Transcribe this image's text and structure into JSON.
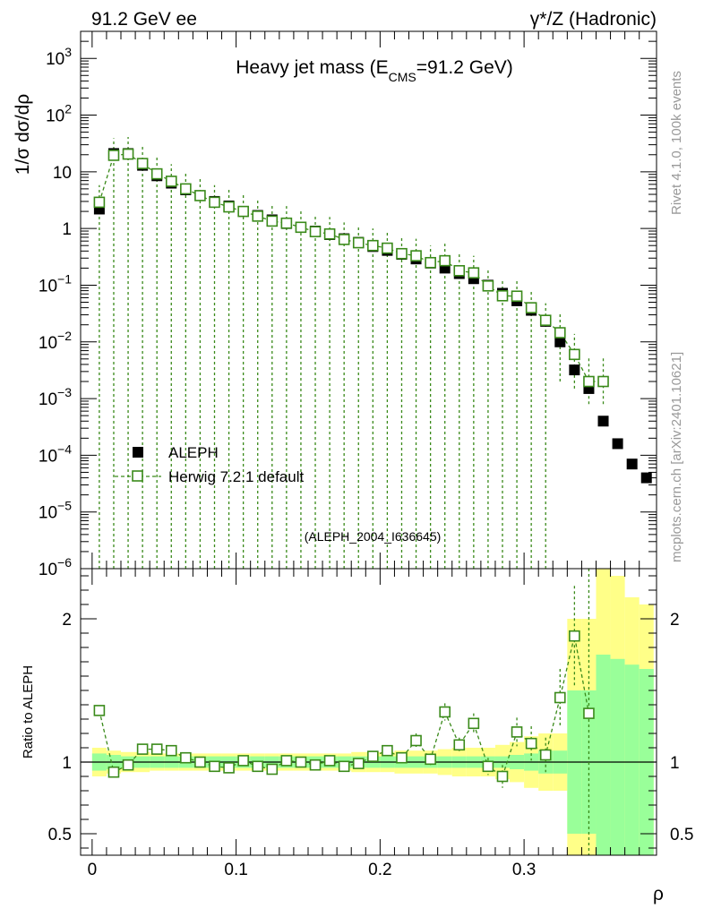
{
  "header": {
    "left": "91.2 GeV ee",
    "right": "γ*/Z (Hadronic)"
  },
  "side": {
    "rivet": "Rivet 4.1.0,  100k events",
    "mcplots": "mcplots.cern.ch [arXiv:2401.10621]"
  },
  "watermark": "(ALEPH_2004_I636645)",
  "colors": {
    "mc": "#3a8a1a",
    "band_outer": "#ffff88",
    "band_inner": "#99ff99",
    "data": "#000000"
  },
  "chart_data": [
    {
      "type": "scatter",
      "title": "Heavy jet mass (E",
      "title_sub": "CMS",
      "title_tail": "=91.2 GeV)",
      "ylabel": "1/σ  dσ/dρ",
      "yscale": "log",
      "ylim": [
        1e-06,
        3000
      ],
      "xlim": [
        -0.008,
        0.392
      ],
      "yticks": [
        {
          "v": 1e-06,
          "b": "10",
          "e": "−6"
        },
        {
          "v": 1e-05,
          "b": "10",
          "e": "−5"
        },
        {
          "v": 0.0001,
          "b": "10",
          "e": "−4"
        },
        {
          "v": 0.001,
          "b": "10",
          "e": "−3"
        },
        {
          "v": 0.01,
          "b": "10",
          "e": "−2"
        },
        {
          "v": 0.1,
          "b": "10",
          "e": "−1"
        },
        {
          "v": 1,
          "b": "1",
          "e": ""
        },
        {
          "v": 10,
          "b": "10",
          "e": ""
        },
        {
          "v": 100,
          "b": "10",
          "e": "2"
        },
        {
          "v": 1000,
          "b": "10",
          "e": "3"
        }
      ],
      "legend": [
        "ALEPH",
        "Herwig 7.2.1 default"
      ],
      "x": [
        0.005,
        0.015,
        0.025,
        0.035,
        0.045,
        0.055,
        0.065,
        0.075,
        0.085,
        0.095,
        0.105,
        0.115,
        0.125,
        0.135,
        0.145,
        0.155,
        0.165,
        0.175,
        0.185,
        0.195,
        0.205,
        0.215,
        0.225,
        0.235,
        0.245,
        0.255,
        0.265,
        0.275,
        0.285,
        0.295,
        0.305,
        0.315,
        0.325,
        0.335,
        0.345,
        0.355,
        0.365,
        0.375,
        0.385
      ],
      "series": [
        {
          "name": "ALEPH",
          "values": [
            2.2,
            21,
            21,
            13,
            8.5,
            6.3,
            4.8,
            3.8,
            3.0,
            2.5,
            2.0,
            1.7,
            1.42,
            1.22,
            1.05,
            0.9,
            0.78,
            0.66,
            0.57,
            0.48,
            0.41,
            0.35,
            0.29,
            0.245,
            0.2,
            0.16,
            0.13,
            0.1,
            0.072,
            0.053,
            0.036,
            0.023,
            0.01,
            0.0032,
            0.0015,
            0.0004,
            0.00016,
            7e-05,
            4e-05
          ]
        },
        {
          "name": "Herwig 7.2.1 default",
          "values": [
            2.9,
            19.5,
            20.5,
            14,
            9.2,
            6.8,
            5.0,
            3.8,
            2.9,
            2.4,
            2.0,
            1.65,
            1.35,
            1.24,
            1.05,
            0.88,
            0.8,
            0.64,
            0.56,
            0.5,
            0.45,
            0.36,
            0.33,
            0.25,
            0.27,
            0.18,
            0.165,
            0.097,
            0.065,
            0.064,
            0.04,
            0.024,
            0.0145,
            0.006,
            0.002,
            0.002
          ],
          "err_low": [
            2.9,
            19.5,
            20.5,
            14,
            9.2,
            6.8,
            5.0,
            3.8,
            2.9,
            2.4,
            2.0,
            1.65,
            1.35,
            1.24,
            1.05,
            0.88,
            0.8,
            0.64,
            0.56,
            0.5,
            0.45,
            0.36,
            0.33,
            0.25,
            0.27,
            0.18,
            0.165,
            0.097,
            0.065,
            0.064,
            0.04,
            0.024,
            0.0125,
            0.0045,
            0.0012,
            0.0012
          ],
          "err_high": [
            2.9,
            19.5,
            20.5,
            14,
            9.2,
            6.8,
            5.0,
            3.8,
            2.9,
            2.4,
            2.0,
            1.65,
            1.35,
            1.24,
            1.05,
            0.88,
            0.8,
            0.64,
            0.56,
            0.5,
            0.45,
            0.36,
            0.33,
            0.25,
            0.27,
            0.18,
            0.165,
            0.097,
            0.065,
            0.064,
            0.04,
            0.024,
            0.017,
            0.0078,
            0.0033,
            0.0033
          ]
        }
      ]
    },
    {
      "type": "line",
      "ylabel": "Ratio to ALEPH",
      "xlabel": "ρ",
      "ylim": [
        0.35,
        2.35
      ],
      "xlim": [
        -0.008,
        0.392
      ],
      "xticks": [
        {
          "v": 0,
          "label": "0"
        },
        {
          "v": 0.1,
          "label": "0.1"
        },
        {
          "v": 0.2,
          "label": "0.2"
        },
        {
          "v": 0.3,
          "label": "0.3"
        }
      ],
      "yticks": [
        {
          "v": 0.5,
          "label": "0.5"
        },
        {
          "v": 1,
          "label": "1"
        },
        {
          "v": 2,
          "label": "2"
        }
      ],
      "bin_edges": [
        0.0,
        0.01,
        0.02,
        0.03,
        0.04,
        0.05,
        0.06,
        0.07,
        0.08,
        0.09,
        0.1,
        0.11,
        0.12,
        0.13,
        0.14,
        0.15,
        0.16,
        0.17,
        0.18,
        0.19,
        0.2,
        0.21,
        0.22,
        0.23,
        0.24,
        0.25,
        0.26,
        0.27,
        0.28,
        0.29,
        0.3,
        0.31,
        0.32,
        0.33,
        0.34,
        0.35,
        0.36,
        0.37,
        0.38,
        0.39
      ],
      "band_outer": [
        0.1,
        0.08,
        0.07,
        0.07,
        0.06,
        0.06,
        0.06,
        0.06,
        0.06,
        0.06,
        0.06,
        0.06,
        0.06,
        0.06,
        0.06,
        0.06,
        0.06,
        0.06,
        0.07,
        0.07,
        0.07,
        0.08,
        0.08,
        0.08,
        0.09,
        0.1,
        0.1,
        0.1,
        0.12,
        0.14,
        0.18,
        0.2,
        0.2,
        1.0,
        1.0,
        1.4,
        1.3,
        1.15,
        1.1
      ],
      "band_inner": [
        0.06,
        0.05,
        0.04,
        0.04,
        0.04,
        0.04,
        0.04,
        0.04,
        0.04,
        0.04,
        0.04,
        0.04,
        0.04,
        0.04,
        0.04,
        0.04,
        0.04,
        0.04,
        0.04,
        0.04,
        0.04,
        0.04,
        0.04,
        0.04,
        0.04,
        0.04,
        0.04,
        0.04,
        0.04,
        0.05,
        0.06,
        0.08,
        0.08,
        0.5,
        0.5,
        0.75,
        0.72,
        0.68,
        0.65
      ],
      "series": [
        {
          "name": "Herwig 7.2.1 default",
          "x": [
            0.005,
            0.015,
            0.025,
            0.035,
            0.045,
            0.055,
            0.065,
            0.075,
            0.085,
            0.095,
            0.105,
            0.115,
            0.125,
            0.135,
            0.145,
            0.155,
            0.165,
            0.175,
            0.185,
            0.195,
            0.205,
            0.215,
            0.225,
            0.235,
            0.245,
            0.255,
            0.265,
            0.275,
            0.285,
            0.295,
            0.305,
            0.315,
            0.325,
            0.335,
            0.345
          ],
          "values": [
            1.36,
            0.93,
            0.98,
            1.09,
            1.09,
            1.08,
            1.03,
            1.0,
            0.97,
            0.96,
            1.01,
            0.97,
            0.95,
            1.01,
            1.0,
            0.98,
            1.01,
            0.97,
            0.99,
            1.04,
            1.08,
            1.03,
            1.15,
            1.02,
            1.35,
            1.12,
            1.27,
            0.97,
            0.9,
            1.21,
            1.13,
            1.05,
            1.45,
            1.88,
            1.34
          ],
          "err": [
            0.03,
            0.02,
            0.02,
            0.02,
            0.02,
            0.02,
            0.02,
            0.02,
            0.02,
            0.02,
            0.02,
            0.02,
            0.02,
            0.02,
            0.02,
            0.02,
            0.02,
            0.02,
            0.03,
            0.03,
            0.03,
            0.03,
            0.05,
            0.04,
            0.06,
            0.05,
            0.07,
            0.06,
            0.08,
            0.1,
            0.12,
            0.12,
            0.2,
            0.35,
            1.2
          ]
        }
      ]
    }
  ]
}
